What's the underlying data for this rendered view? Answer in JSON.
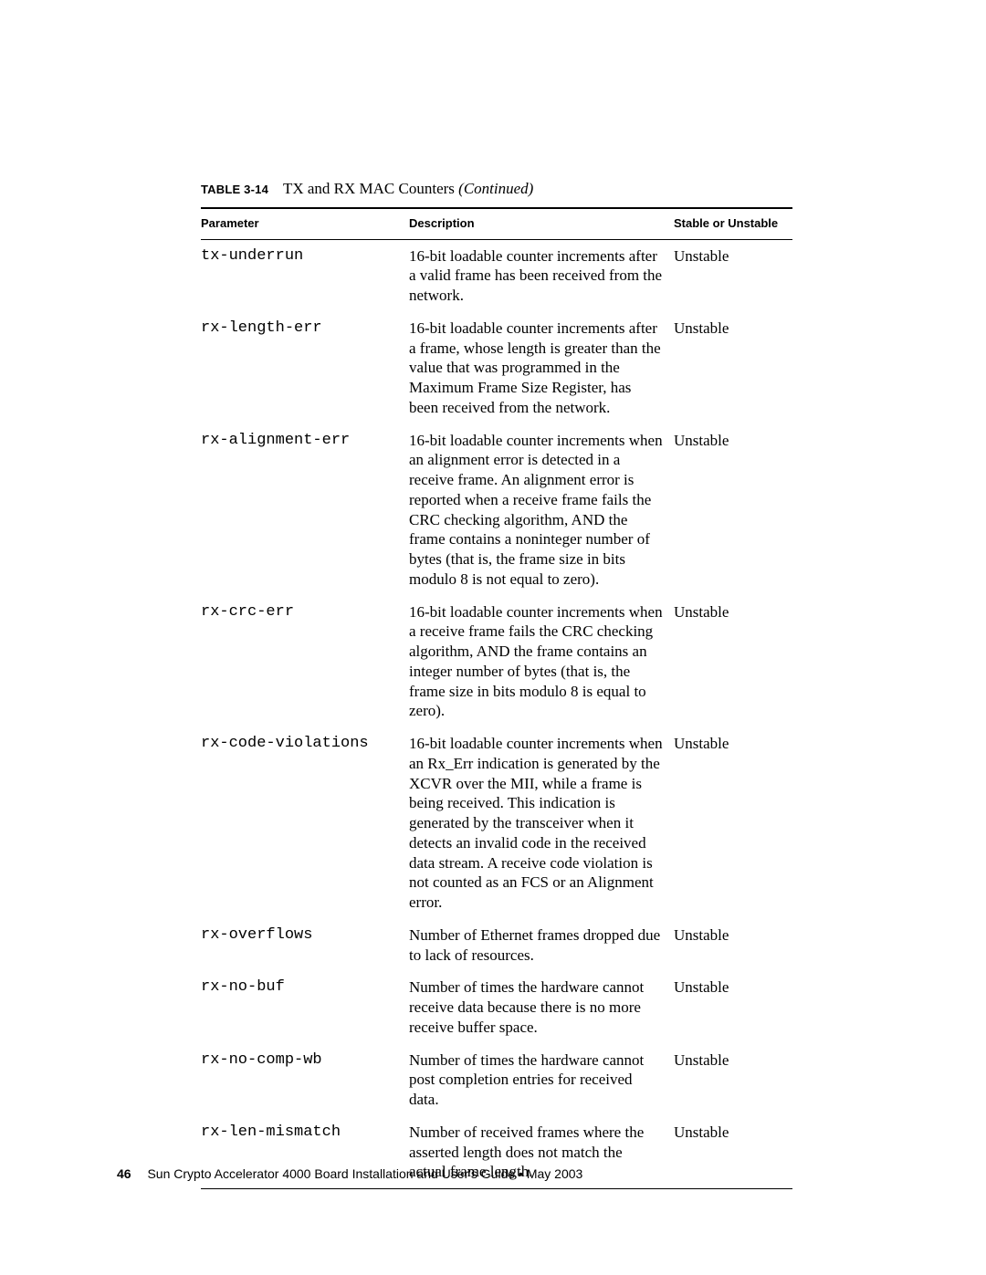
{
  "caption": {
    "label": "TABLE 3-14",
    "title": "TX and RX MAC Counters ",
    "continued": "(Continued)"
  },
  "columns": {
    "parameter": "Parameter",
    "description": "Description",
    "status": "Stable or Unstable"
  },
  "rows": [
    {
      "parameter": "tx-underrun",
      "description": "16-bit loadable counter increments after a valid frame has been received from the network.",
      "status": "Unstable"
    },
    {
      "parameter": "rx-length-err",
      "description": "16-bit loadable counter increments after a frame, whose length is greater than the value that was programmed in the Maximum Frame Size Register, has been received from the network.",
      "status": "Unstable"
    },
    {
      "parameter": "rx-alignment-err",
      "description": "16-bit loadable counter increments when an alignment error is detected in a receive frame. An alignment error is reported when a receive frame fails the CRC checking algorithm, AND the frame contains a noninteger number of bytes (that is, the frame size in bits modulo 8 is not equal to zero).",
      "status": "Unstable"
    },
    {
      "parameter": "rx-crc-err",
      "description": "16-bit loadable counter increments when a receive frame fails the CRC checking algorithm, AND the frame contains an integer number of bytes (that is, the frame size in bits modulo 8 is equal to zero).",
      "status": "Unstable"
    },
    {
      "parameter": "rx-code-violations",
      "description": "16-bit loadable counter increments when an Rx_Err indication is generated by the XCVR over the MII, while a frame is being received. This indication is generated by the transceiver when it detects an invalid code in the received data stream. A receive code violation is not counted as an FCS or an Alignment error.",
      "status": "Unstable"
    },
    {
      "parameter": "rx-overflows",
      "description": "Number of Ethernet frames dropped due to lack of resources.",
      "status": "Unstable"
    },
    {
      "parameter": "rx-no-buf",
      "description": "Number of times the hardware cannot receive data because there is no more receive buffer space.",
      "status": "Unstable"
    },
    {
      "parameter": "rx-no-comp-wb",
      "description": "Number of times the hardware cannot post completion entries for received data.",
      "status": "Unstable"
    },
    {
      "parameter": "rx-len-mismatch",
      "description": "Number of received frames where the asserted length does not match the actual frame length.",
      "status": "Unstable"
    }
  ],
  "footer": {
    "page_number": "46",
    "text": "Sun Crypto Accelerator 4000 Board Installation and User's Guide • May 2003"
  }
}
